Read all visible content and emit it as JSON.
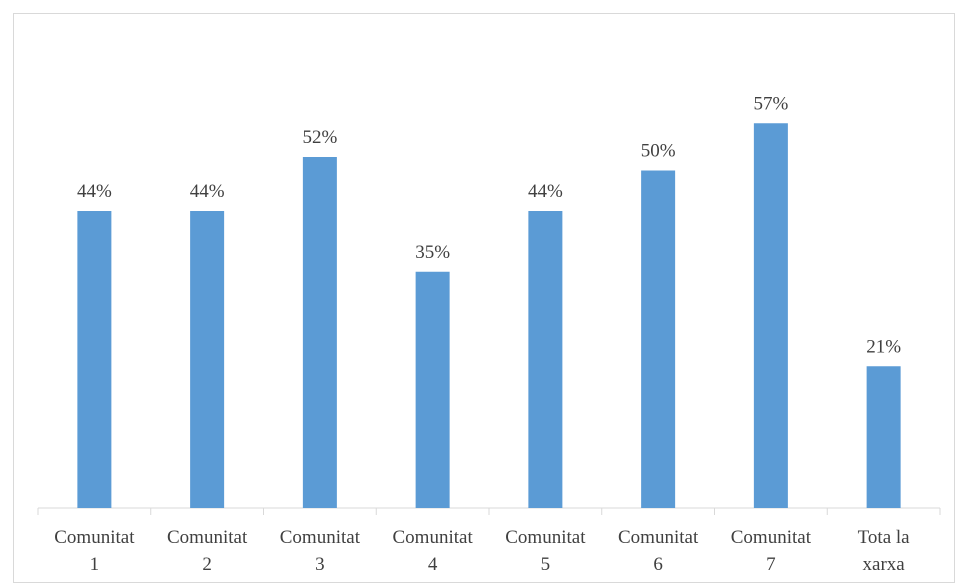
{
  "chart_data": {
    "type": "bar",
    "categories": [
      [
        "Comunitat",
        "1"
      ],
      [
        "Comunitat",
        "2"
      ],
      [
        "Comunitat",
        "3"
      ],
      [
        "Comunitat",
        "4"
      ],
      [
        "Comunitat",
        "5"
      ],
      [
        "Comunitat",
        "6"
      ],
      [
        "Comunitat",
        "7"
      ],
      [
        "Tota la",
        "xarxa"
      ]
    ],
    "values": [
      44,
      44,
      52,
      35,
      44,
      50,
      57,
      21
    ],
    "data_labels": [
      "44%",
      "44%",
      "52%",
      "35%",
      "44%",
      "50%",
      "57%",
      "21%"
    ],
    "title": "",
    "xlabel": "",
    "ylabel": "",
    "ylim": [
      0,
      60
    ],
    "grid": false,
    "legend": "none",
    "bar_color": "#5b9bd5",
    "axis_color": "#d9d9d9",
    "text_color": "#404040"
  }
}
